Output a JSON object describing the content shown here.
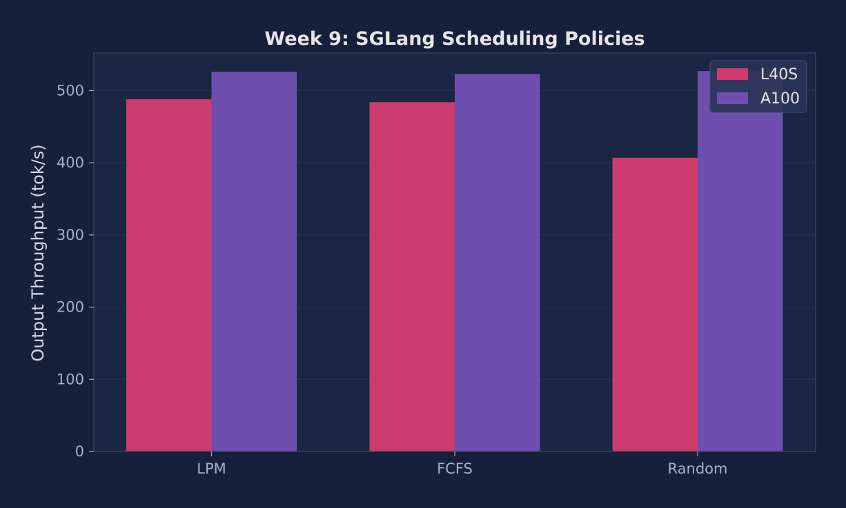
{
  "chart_data": {
    "type": "bar",
    "title": "Week 9: SGLang Scheduling Policies",
    "xlabel": "",
    "ylabel": "Output Throughput (tok/s)",
    "categories": [
      "LPM",
      "FCFS",
      "Random"
    ],
    "series": [
      {
        "name": "L40S",
        "values": [
          488,
          484,
          407
        ],
        "color": "#cc3b6e"
      },
      {
        "name": "A100",
        "values": [
          526,
          523,
          527
        ],
        "color": "#6e4faf"
      }
    ],
    "ylim": [
      0,
      552
    ],
    "yticks": [
      0,
      100,
      200,
      300,
      400,
      500
    ],
    "grid": true,
    "legend_position": "top-right"
  },
  "colors": {
    "background": "#17203b",
    "plot_background": "#1b2642",
    "grid": "#26314d",
    "spine": "#33405f",
    "tick_text": "#a7b1c8",
    "title_text": "#e6e6e6"
  }
}
